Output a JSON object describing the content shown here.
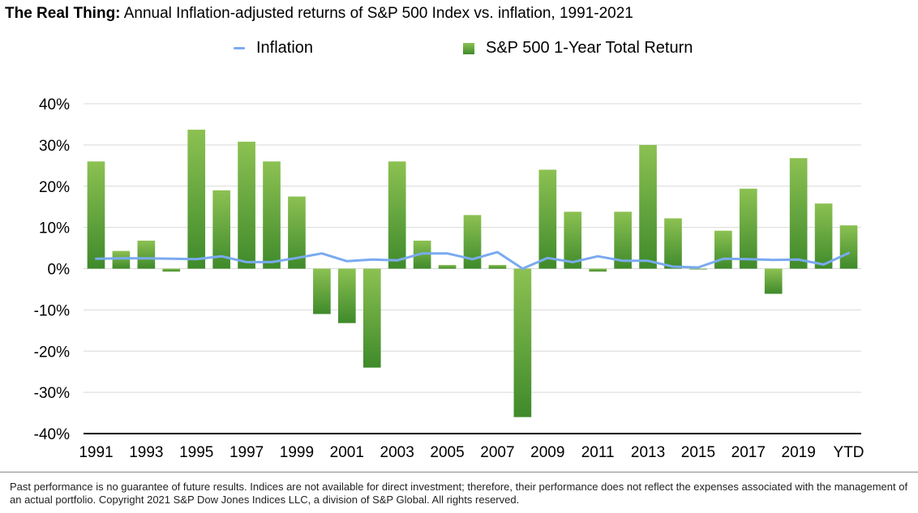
{
  "header": {
    "title_bold": "The Real Thing:",
    "title_rest": "Annual Inflation-adjusted returns of S&P 500 Index vs. inflation, 1991-2021"
  },
  "legend": {
    "inflation_label": "Inflation",
    "sp500_label": "S&P 500 1-Year Total Return"
  },
  "colors": {
    "bar_top": "#8cc152",
    "bar_bottom": "#3f8a2b",
    "inflation_line": "#7aaaf0",
    "grid": "#d9d9d9",
    "axis": "#000000"
  },
  "chart_data": {
    "type": "bar",
    "title": "The Real Thing: Annual Inflation-adjusted returns of S&P 500 Index vs. inflation, 1991-2021",
    "xlabel": "",
    "ylabel": "",
    "ylim": [
      -40,
      40
    ],
    "y_ticks": [
      40,
      30,
      20,
      10,
      0,
      -10,
      -20,
      -30,
      -40
    ],
    "y_tick_labels": [
      "40%",
      "30%",
      "20%",
      "10%",
      "0%",
      "-10%",
      "-20%",
      "-30%",
      "-40%"
    ],
    "categories": [
      "1991",
      "1992",
      "1993",
      "1994",
      "1995",
      "1996",
      "1997",
      "1998",
      "1999",
      "2000",
      "2001",
      "2002",
      "2003",
      "2004",
      "2005",
      "2006",
      "2007",
      "2008",
      "2009",
      "2010",
      "2011",
      "2012",
      "2013",
      "2014",
      "2015",
      "2016",
      "2017",
      "2018",
      "2019",
      "2020",
      "YTD"
    ],
    "x_tick_labels": [
      "1991",
      "",
      "1993",
      "",
      "1995",
      "",
      "1997",
      "",
      "1999",
      "",
      "2001",
      "",
      "2003",
      "",
      "2005",
      "",
      "2007",
      "",
      "2009",
      "",
      "2011",
      "",
      "2013",
      "",
      "2015",
      "",
      "2017",
      "",
      "2019",
      "",
      "YTD"
    ],
    "series": [
      {
        "name": "S&P 500 1-Year Total Return",
        "kind": "bar",
        "values": [
          26,
          4.3,
          6.8,
          -0.7,
          33.7,
          19,
          30.8,
          26,
          17.5,
          -11,
          -13.2,
          -24,
          26,
          6.8,
          0.9,
          13,
          0.9,
          -36,
          24,
          13.8,
          -0.7,
          13.8,
          30,
          12.2,
          -0.1,
          9.2,
          19.4,
          -6.1,
          26.8,
          15.8,
          10.5
        ]
      },
      {
        "name": "Inflation",
        "kind": "line",
        "values": [
          2.4,
          2.5,
          2.5,
          2.4,
          2.3,
          3.0,
          1.6,
          1.6,
          2.6,
          3.7,
          1.8,
          2.2,
          2.0,
          3.7,
          3.7,
          2.3,
          4.0,
          0.0,
          2.6,
          1.6,
          3.0,
          1.9,
          1.9,
          0.5,
          0.3,
          2.4,
          2.3,
          2.1,
          2.2,
          1.0,
          3.8
        ]
      }
    ],
    "legend_position": "top-center",
    "grid": true
  },
  "footer": {
    "note": "Past performance is no guarantee of future results. Indices are not available for direct investment; therefore, their performance does not reflect the expenses associated with the management of an actual portfolio. Copyright 2021 S&P Dow Jones Indices LLC, a division of S&P Global. All rights reserved."
  }
}
